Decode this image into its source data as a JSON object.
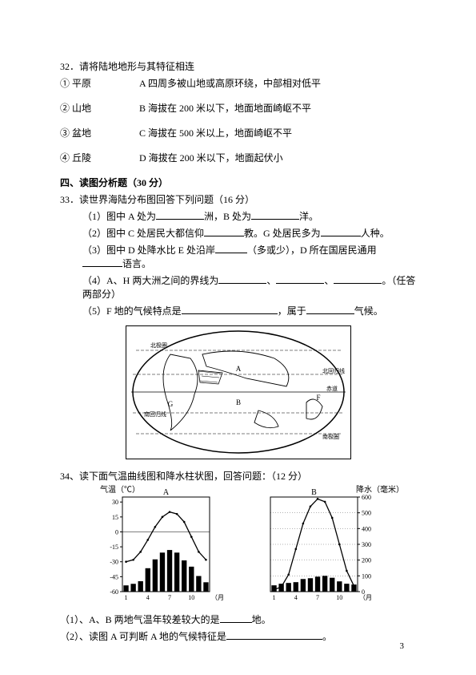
{
  "q32": {
    "stem": "32．请将陆地地形与其特征相连",
    "rows": [
      {
        "num": "①",
        "name": "平原",
        "opt": "A",
        "desc": "四周多被山地或高原环绕，中部相对低平"
      },
      {
        "num": "②",
        "name": "山地",
        "opt": "B",
        "desc": "海拔在 200 米以下，地面地面崎岖不平"
      },
      {
        "num": "③",
        "name": "盆地",
        "opt": "C",
        "desc": "海拔在 500 米以上，地面崎岖不平"
      },
      {
        "num": "④",
        "name": "丘陵",
        "opt": "D",
        "desc": "海拔在 200 米以下，地面起伏小"
      }
    ]
  },
  "section4": "四、读图分析题（30 分）",
  "q33": {
    "stem": "33．读世界海陆分布图回答下列问题（16 分）",
    "p1a": "（1）图中 A 处为",
    "p1b": "洲，B 处为",
    "p1c": "洋。",
    "p2a": "（2）图中 C 处居民大都信仰",
    "p2b": "教。G 处居民多为",
    "p2c": "人种。",
    "p3a": "（3）图中 D 处降水比 E 处沿岸",
    "p3b": "（多或少），D 所在国居民通用",
    "p3c": "语言。",
    "p4a": "（4）A、H 两大洲之间的界线为",
    "p4b": "、",
    "p4c": "、",
    "p4d": "。（任答两部分）",
    "p5a": "（5）F 地的气候特点是",
    "p5b": "，属于",
    "p5c": "气候。"
  },
  "worldmap": {
    "labels": {
      "G": "G",
      "A": "A",
      "B": "B",
      "F": "F"
    },
    "annot": {
      "nw": "北极圈",
      "tropic": "北回归线",
      "equator": "赤道",
      "south": "南回归线",
      "antarctic": "南极圈"
    }
  },
  "q34": {
    "stem": "34、读下面气温曲线图和降水柱状图，回答问题：（12 分）",
    "p1a": "（1）、A、B 两地气温年较差较大的是",
    "p1b": "地。",
    "p2a": "（2）、读图 A 可判断 A 地的气候特征是",
    "p2b": "。"
  },
  "chartA": {
    "title": "A",
    "y_label": "气温（℃）",
    "y_ticks": [
      30,
      15,
      0,
      -15,
      -30,
      -45,
      -60
    ],
    "ylim": [
      -60,
      35
    ],
    "x_ticks": [
      1,
      4,
      7,
      10
    ],
    "x_label": "（月）",
    "temp": [
      -30,
      -28,
      -20,
      -8,
      5,
      15,
      20,
      18,
      10,
      -5,
      -20,
      -28
    ],
    "precip": [
      12,
      15,
      20,
      45,
      62,
      75,
      80,
      75,
      60,
      48,
      30,
      18
    ],
    "precip_max": 100,
    "colors": {
      "bar": "#000000",
      "line": "#000000",
      "bg": "#ffffff",
      "axis": "#000000"
    }
  },
  "chartB": {
    "title": "B",
    "y_right_label": "降水（毫米）",
    "y_right_ticks": [
      600,
      500,
      400,
      300,
      200,
      100,
      0
    ],
    "ylim_right": [
      0,
      600
    ],
    "x_ticks": [
      1,
      4,
      7,
      10
    ],
    "x_label": "（月）",
    "temp_scaled": [
      0.02,
      0.05,
      0.18,
      0.45,
      0.72,
      0.9,
      0.98,
      0.95,
      0.78,
      0.5,
      0.22,
      0.06
    ],
    "precip": [
      40,
      50,
      55,
      60,
      80,
      85,
      95,
      100,
      88,
      65,
      50,
      45
    ],
    "precip_max": 600,
    "colors": {
      "bar": "#000000",
      "line": "#000000",
      "bg": "#ffffff",
      "axis": "#000000"
    }
  },
  "page_number": "3"
}
